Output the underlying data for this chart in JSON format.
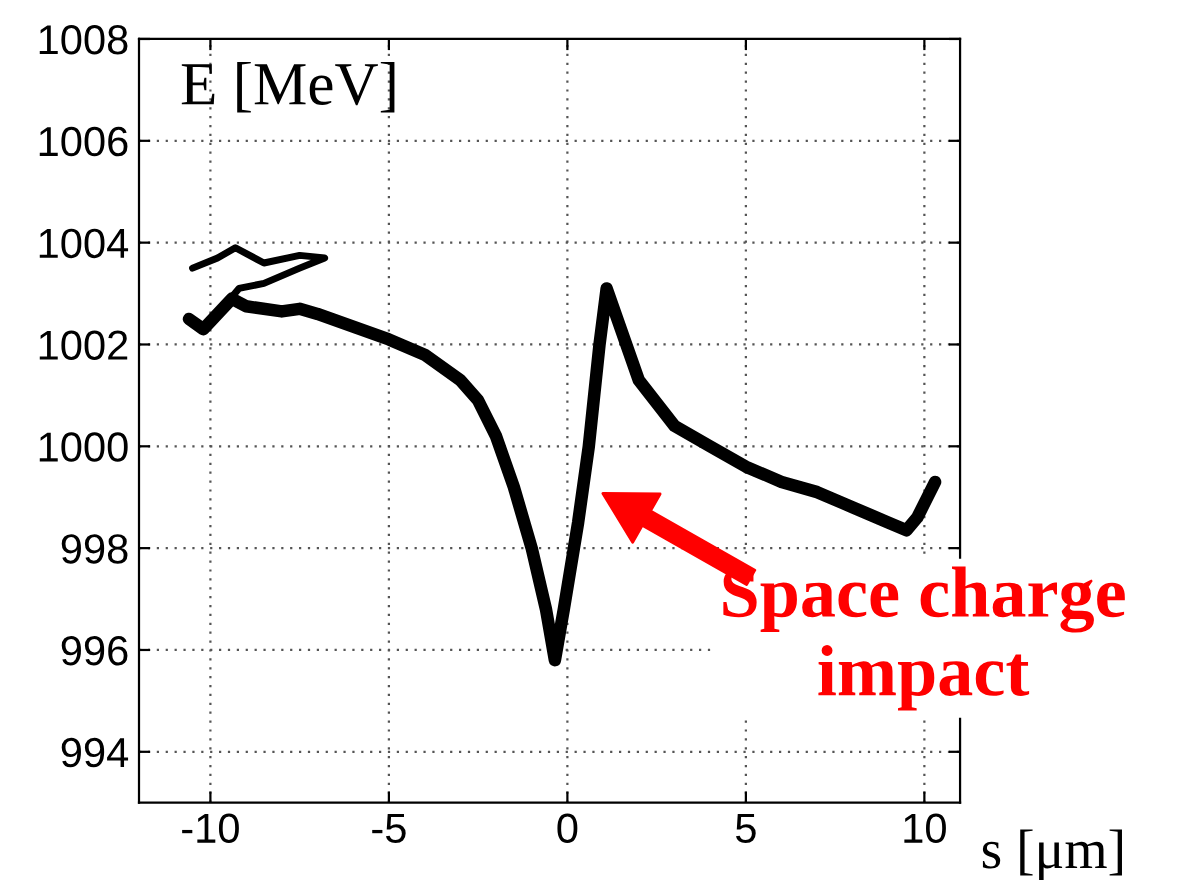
{
  "chart_data": {
    "type": "line",
    "xlabel": "s [μm]",
    "ylabel": "E [MeV]",
    "xlim": [
      -12,
      11
    ],
    "ylim": [
      993,
      1008
    ],
    "xticks": [
      -10,
      -5,
      0,
      5,
      10
    ],
    "yticks": [
      994,
      996,
      998,
      1000,
      1002,
      1004,
      1006,
      1008
    ],
    "grid": true,
    "line_style": "solid",
    "marker": "none",
    "series": [
      {
        "color": "#000000",
        "x": [
          -10.6,
          -10.2,
          -9.8,
          -9.4,
          -9.0,
          -8.0,
          -7.5,
          -7.0,
          -6.0,
          -5.0,
          -4.0,
          -3.0,
          -2.5,
          -2.0,
          -1.5,
          -1.0,
          -0.6,
          -0.35,
          -0.1,
          0.3,
          0.6,
          0.9,
          1.1,
          1.5,
          2.0,
          3.0,
          4.0,
          5.0,
          6.0,
          7.0,
          8.0,
          9.0,
          9.5,
          9.8,
          10.3
        ],
        "values": [
          1002.5,
          1002.3,
          1002.6,
          1002.9,
          1002.75,
          1002.65,
          1002.7,
          1002.6,
          1002.35,
          1002.1,
          1001.8,
          1001.3,
          1000.9,
          1000.2,
          999.2,
          998.0,
          996.8,
          995.8,
          996.8,
          998.5,
          1000.0,
          1002.0,
          1003.1,
          1002.3,
          1001.3,
          1000.4,
          1000.0,
          999.6,
          999.3,
          999.1,
          998.8,
          998.5,
          998.35,
          998.6,
          999.3
        ]
      },
      {
        "color": "#000000",
        "x": [
          -9.8,
          -9.2,
          -8.5,
          -7.5,
          -6.8,
          -7.5,
          -8.5,
          -9.3,
          -9.8,
          -10.5
        ],
        "values": [
          1002.6,
          1003.1,
          1003.2,
          1003.5,
          1003.7,
          1003.75,
          1003.6,
          1003.9,
          1003.7,
          1003.5
        ]
      }
    ],
    "annotations": [
      "Space charge\nimpact"
    ]
  }
}
